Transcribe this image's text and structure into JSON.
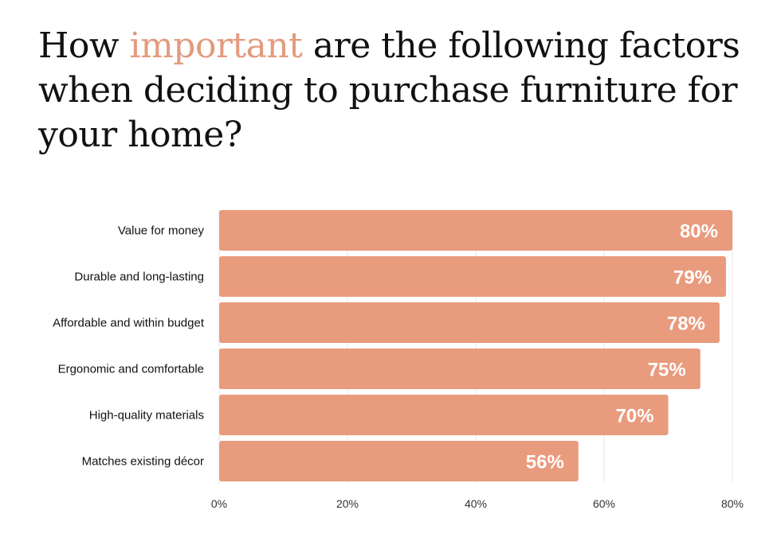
{
  "title": {
    "before": "How ",
    "highlight": "important",
    "after": " are the following factors when deciding to purchase furniture for your home?",
    "highlight_color": "#e39b7e"
  },
  "colors": {
    "bar": "#e99b7e",
    "grid": "#e6e6e6"
  },
  "chart_data": {
    "type": "bar",
    "orientation": "horizontal",
    "title": "How important are the following factors when deciding to purchase furniture for your home?",
    "categories": [
      "Value for money",
      "Durable and long-lasting",
      "Affordable and within budget",
      "Ergonomic and comfortable",
      "High-quality materials",
      "Matches existing décor"
    ],
    "values": [
      80,
      79,
      78,
      75,
      70,
      56
    ],
    "data_labels": [
      "80%",
      "79%",
      "78%",
      "75%",
      "70%",
      "56%"
    ],
    "xlim": [
      0,
      80
    ],
    "x_ticks": [
      0,
      20,
      40,
      60,
      80
    ],
    "x_tick_labels": [
      "0%",
      "20%",
      "40%",
      "60%",
      "80%"
    ],
    "grid": true,
    "legend": "none"
  }
}
